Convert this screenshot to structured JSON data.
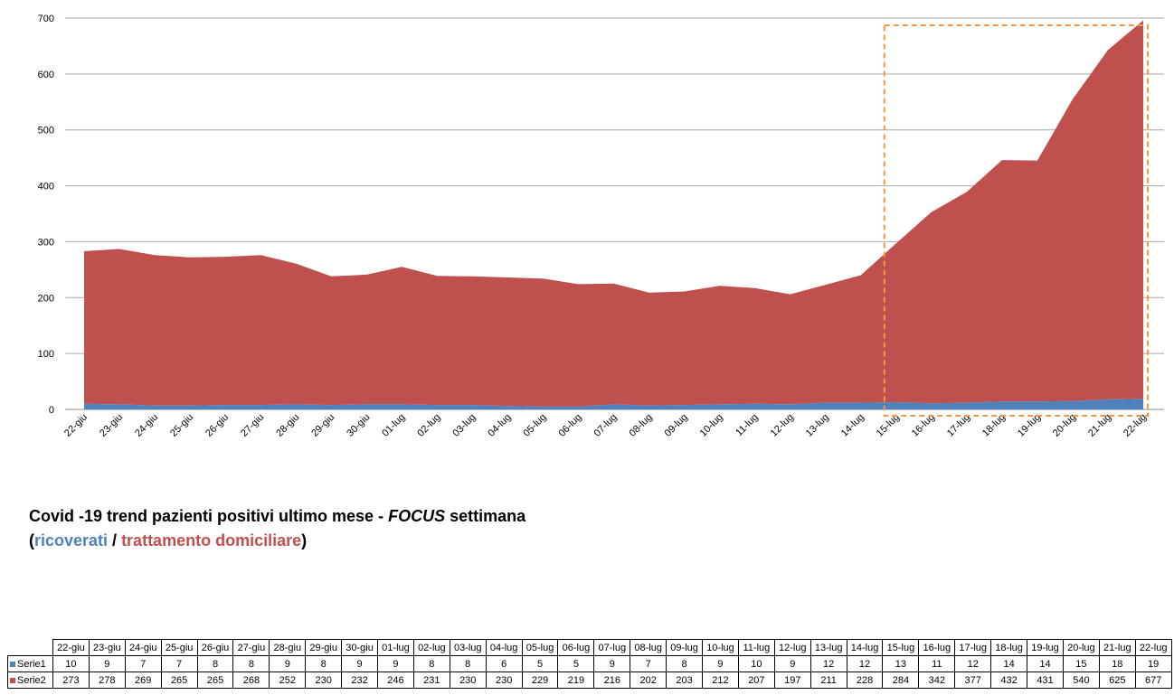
{
  "chart_data": {
    "type": "area",
    "stacked": true,
    "categories": [
      "22-giu",
      "23-giu",
      "24-giu",
      "25-giu",
      "26-giu",
      "27-giu",
      "28-giu",
      "29-giu",
      "30-giu",
      "01-lug",
      "02-lug",
      "03-lug",
      "04-lug",
      "05-lug",
      "06-lug",
      "07-lug",
      "08-lug",
      "09-lug",
      "10-lug",
      "11-lug",
      "12-lug",
      "13-lug",
      "14-lug",
      "15-lug",
      "16-lug",
      "17-lug",
      "18-lug",
      "19-lug",
      "20-lug",
      "21-lug",
      "22-lug"
    ],
    "series": [
      {
        "name": "Serie1",
        "color": "#4f81bd",
        "values": [
          10,
          9,
          7,
          7,
          8,
          8,
          9,
          8,
          9,
          9,
          8,
          8,
          6,
          5,
          5,
          9,
          7,
          8,
          9,
          10,
          9,
          12,
          12,
          13,
          11,
          12,
          14,
          14,
          15,
          18,
          19
        ]
      },
      {
        "name": "Serie2",
        "color": "#c0504d",
        "values": [
          273,
          278,
          269,
          265,
          265,
          268,
          252,
          230,
          232,
          246,
          231,
          230,
          230,
          229,
          219,
          216,
          202,
          203,
          212,
          207,
          197,
          211,
          228,
          284,
          342,
          377,
          432,
          431,
          540,
          625,
          677
        ]
      }
    ],
    "ylim": [
      0,
      700
    ],
    "yticks": [
      "0",
      "100",
      "200",
      "300",
      "400",
      "500",
      "600",
      "700"
    ],
    "grid": true,
    "highlight": {
      "from": "15-lug",
      "to": "22-lug",
      "style": "dashed",
      "color": "#f79646"
    },
    "data_table": true
  },
  "caption": {
    "line1_pre": "Covid -19 trend pazienti positivi ultimo mese - ",
    "line1_focus": "FOCUS",
    "line1_post": " settimana",
    "open_paren": "(",
    "ricoverati": "ricoverati",
    "slash": " / ",
    "trattamento": "trattamento domiciliare",
    "close_paren": ")"
  }
}
